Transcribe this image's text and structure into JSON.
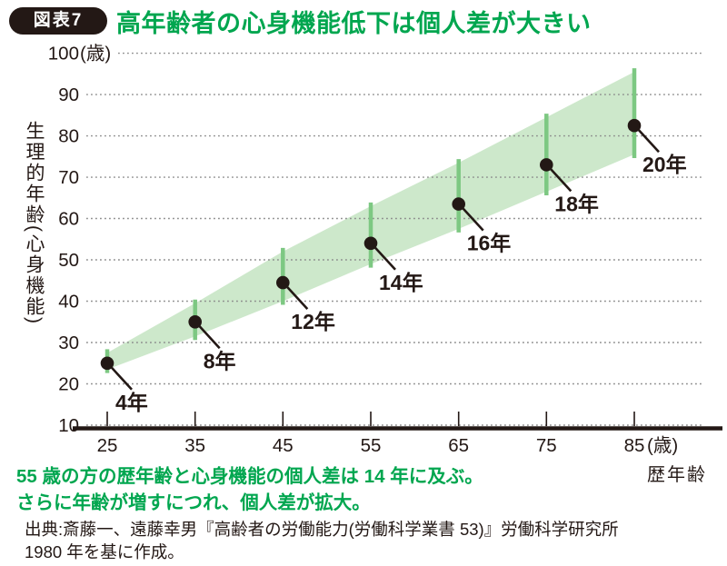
{
  "header": {
    "badge": "図表7",
    "title": "高年齢者の心身機能低下は個人差が大きい"
  },
  "chart_data": {
    "type": "band-scatter",
    "title": "高年齢者の心身機能低下は個人差が大きい",
    "xlabel": "歴年齢",
    "ylabel": "生理的年齢(心身機能)",
    "x_unit": "(歳)",
    "y_unit": "(歳)",
    "xlim": [
      20,
      90
    ],
    "ylim": [
      10,
      100
    ],
    "x_ticks": [
      25,
      35,
      45,
      55,
      65,
      75,
      85
    ],
    "y_ticks": [
      100,
      90,
      80,
      70,
      60,
      50,
      40,
      30,
      20,
      10
    ],
    "grid": "dotted-horizontal",
    "points": [
      {
        "chronological_age": 25,
        "physiological_age": 25,
        "band_low": 23.5,
        "band_high": 27.5,
        "difference_years": 4,
        "label": "4年"
      },
      {
        "chronological_age": 35,
        "physiological_age": 35,
        "band_low": 31.5,
        "band_high": 39.5,
        "difference_years": 8,
        "label": "8年"
      },
      {
        "chronological_age": 45,
        "physiological_age": 44.5,
        "band_low": 40,
        "band_high": 52,
        "difference_years": 12,
        "label": "12年"
      },
      {
        "chronological_age": 55,
        "physiological_age": 54,
        "band_low": 49,
        "band_high": 63,
        "difference_years": 14,
        "label": "14年"
      },
      {
        "chronological_age": 65,
        "physiological_age": 63.5,
        "band_low": 57.5,
        "band_high": 73.5,
        "difference_years": 16,
        "label": "16年"
      },
      {
        "chronological_age": 75,
        "physiological_age": 73,
        "band_low": 66.5,
        "band_high": 84.5,
        "difference_years": 18,
        "label": "18年"
      },
      {
        "chronological_age": 85,
        "physiological_age": 82.5,
        "band_low": 75.5,
        "band_high": 95.5,
        "difference_years": 20,
        "label": "20年"
      }
    ],
    "colors": {
      "band": "#cde8cb",
      "band_line": "#7dc882",
      "dot": "#231815",
      "grid": "#8c8c8c",
      "axis": "#231815",
      "accent_green": "#00a64f"
    }
  },
  "annotation": {
    "line1": "55 歳の方の歴年齢と心身機能の個人差は 14 年に及ぶ。",
    "line2": "さらに年齢が増すにつれ、個人差が拡大。"
  },
  "source": {
    "line1": "出典:斎藤一、遠藤幸男『高齢者の労働能力(労働科学業書 53)』労働科学研究所",
    "line2": "1980 年を基に作成。"
  }
}
